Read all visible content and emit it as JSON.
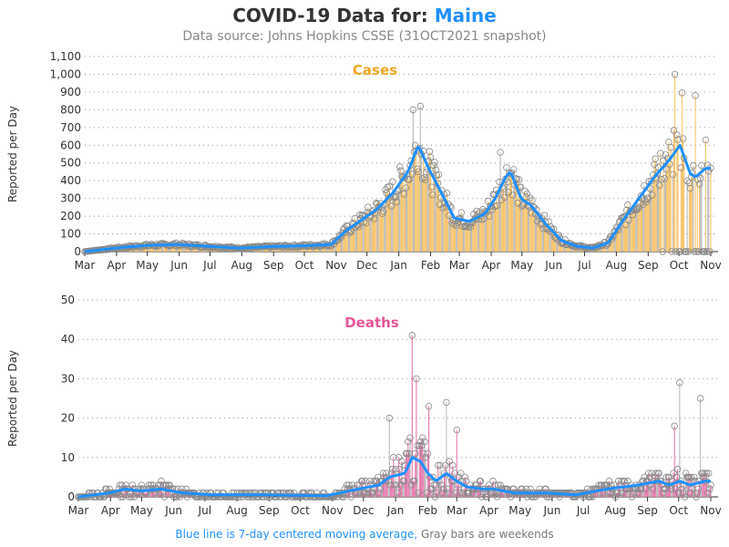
{
  "header": {
    "title_prefix": "COVID-19 Data for:",
    "location": "Maine",
    "subtitle": "Data source: Johns Hopkins CSSE (31OCT2021 snapshot)"
  },
  "footer": {
    "blue_note": "Blue line is 7-day centered moving average,",
    "gray_note": "Gray bars are weekends"
  },
  "colors": {
    "cases": "#f5a623",
    "cases_bar": "#f7c46c",
    "deaths": "#e8559a",
    "deaths_bar": "#e97ab0",
    "average": "#1e90ff",
    "marker": "#888888"
  },
  "chart_data": [
    {
      "type": "bar",
      "title": "Cases",
      "ylabel": "Reported per Day",
      "ylim": [
        0,
        1100
      ],
      "yticks": [
        0,
        100,
        200,
        300,
        400,
        500,
        600,
        700,
        800,
        900,
        1000,
        1100
      ],
      "ytick_labels": [
        "0",
        "100",
        "200",
        "300",
        "400",
        "500",
        "600",
        "700",
        "800",
        "900",
        "1,000",
        "1,100"
      ],
      "x_month_labels": [
        "Mar",
        "Apr",
        "May",
        "Jun",
        "Jul",
        "Aug",
        "Sep",
        "Oct",
        "Nov",
        "Dec",
        "Jan",
        "Feb",
        "Mar",
        "Apr",
        "May",
        "Jun",
        "Jul",
        "Aug",
        "Sep",
        "Oct",
        "Nov"
      ],
      "moving_average": [
        [
          0,
          0
        ],
        [
          30,
          20
        ],
        [
          60,
          35
        ],
        [
          90,
          40
        ],
        [
          120,
          30
        ],
        [
          150,
          20
        ],
        [
          180,
          28
        ],
        [
          210,
          32
        ],
        [
          240,
          40
        ],
        [
          255,
          120
        ],
        [
          270,
          180
        ],
        [
          285,
          240
        ],
        [
          300,
          330
        ],
        [
          315,
          450
        ],
        [
          325,
          600
        ],
        [
          335,
          470
        ],
        [
          345,
          360
        ],
        [
          360,
          190
        ],
        [
          375,
          170
        ],
        [
          390,
          215
        ],
        [
          400,
          300
        ],
        [
          410,
          420
        ],
        [
          415,
          450
        ],
        [
          425,
          300
        ],
        [
          435,
          260
        ],
        [
          450,
          150
        ],
        [
          465,
          60
        ],
        [
          480,
          30
        ],
        [
          495,
          20
        ],
        [
          510,
          50
        ],
        [
          525,
          180
        ],
        [
          540,
          300
        ],
        [
          555,
          420
        ],
        [
          570,
          520
        ],
        [
          580,
          600
        ],
        [
          585,
          520
        ],
        [
          590,
          440
        ],
        [
          595,
          420
        ],
        [
          605,
          470
        ],
        [
          610,
          470
        ]
      ],
      "notable_days": [
        [
          320,
          800
        ],
        [
          327,
          820
        ],
        [
          405,
          560
        ],
        [
          575,
          1000
        ],
        [
          582,
          895
        ],
        [
          595,
          880
        ],
        [
          605,
          630
        ]
      ],
      "grid": true
    },
    {
      "type": "bar",
      "title": "Deaths",
      "ylabel": "Reported per Day",
      "ylim": [
        0,
        50
      ],
      "yticks": [
        0,
        10,
        20,
        30,
        40,
        50
      ],
      "ytick_labels": [
        "0",
        "10",
        "20",
        "30",
        "40",
        "50"
      ],
      "x_month_labels": [
        "Mar",
        "Apr",
        "May",
        "Jun",
        "Jul",
        "Aug",
        "Sep",
        "Oct",
        "Nov",
        "Dec",
        "Jan",
        "Feb",
        "Mar",
        "Apr",
        "May",
        "Jun",
        "Jul",
        "Aug",
        "Sep",
        "Oct",
        "Nov"
      ],
      "moving_average": [
        [
          0,
          0
        ],
        [
          30,
          1
        ],
        [
          45,
          2
        ],
        [
          60,
          1.5
        ],
        [
          80,
          2
        ],
        [
          100,
          1
        ],
        [
          130,
          0.5
        ],
        [
          180,
          0.5
        ],
        [
          240,
          0.3
        ],
        [
          270,
          2
        ],
        [
          290,
          3
        ],
        [
          300,
          5
        ],
        [
          315,
          6
        ],
        [
          322,
          10
        ],
        [
          330,
          9
        ],
        [
          337,
          6
        ],
        [
          345,
          4
        ],
        [
          355,
          6
        ],
        [
          365,
          4
        ],
        [
          375,
          2.5
        ],
        [
          390,
          2
        ],
        [
          400,
          2
        ],
        [
          420,
          1
        ],
        [
          450,
          1
        ],
        [
          480,
          0.5
        ],
        [
          510,
          2
        ],
        [
          540,
          3
        ],
        [
          560,
          4
        ],
        [
          570,
          3
        ],
        [
          580,
          4
        ],
        [
          590,
          3
        ],
        [
          605,
          4
        ],
        [
          610,
          4
        ]
      ],
      "notable_days": [
        [
          300,
          20
        ],
        [
          322,
          41
        ],
        [
          326,
          30
        ],
        [
          338,
          23
        ],
        [
          355,
          24
        ],
        [
          365,
          17
        ],
        [
          580,
          29
        ],
        [
          600,
          25
        ],
        [
          575,
          18
        ]
      ],
      "grid": true
    }
  ]
}
